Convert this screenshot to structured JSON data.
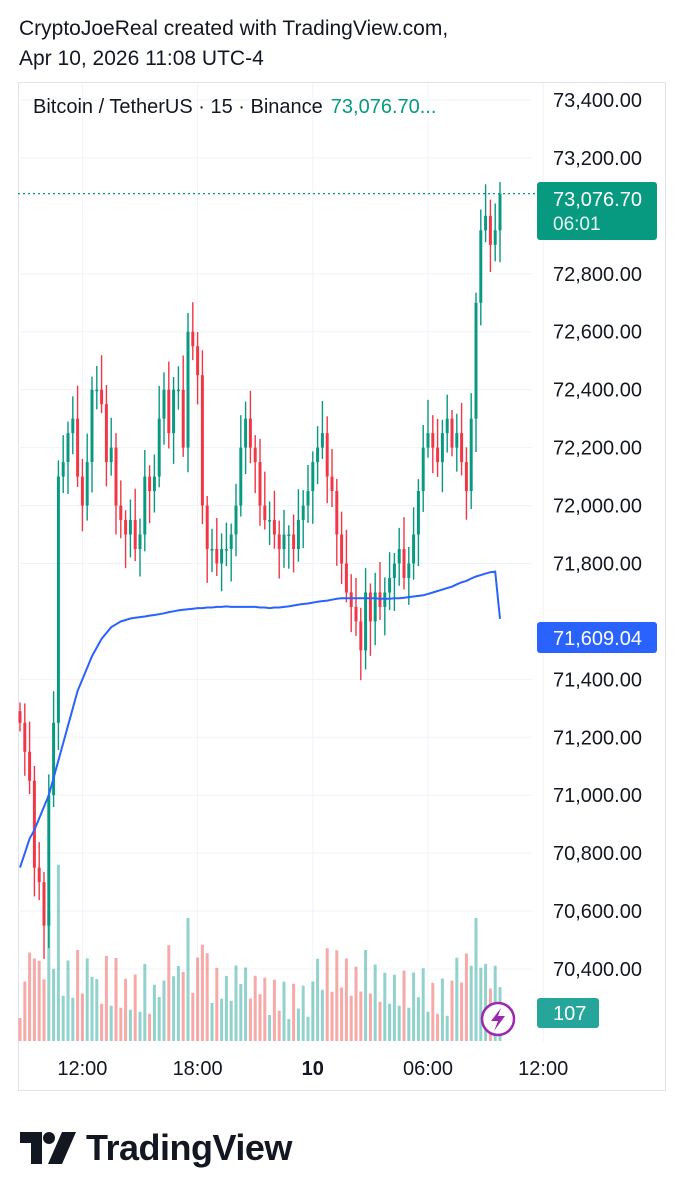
{
  "header": {
    "line1": "CryptoJoeReal created with TradingView.com,",
    "line2": "Apr 10, 2026 11:08 UTC-4"
  },
  "legend": {
    "symbol": "Bitcoin / TetherUS · 15 · Binance",
    "price": "73,076.70..."
  },
  "badges": {
    "last_price": "73,076.70",
    "countdown": "06:01",
    "ma_value": "71,609.04",
    "volume": "107"
  },
  "brand": {
    "name": "TradingView"
  },
  "colors": {
    "up": "#089981",
    "down": "#f23645",
    "ma": "#2962ff",
    "grid": "#f0f3fa"
  },
  "chart_data": {
    "type": "candlestick",
    "symbol": "BTCUSDT",
    "interval": "15",
    "exchange": "Binance",
    "ylim": [
      70300,
      73400
    ],
    "y_ticks": [
      73400,
      73200,
      72800,
      72600,
      72400,
      72200,
      72000,
      71800,
      71400,
      71200,
      71000,
      70800,
      70600,
      70400
    ],
    "y_tick_labels": [
      "73,400.00",
      "73,200.00",
      "72,800.00",
      "72,600.00",
      "72,400.00",
      "72,200.00",
      "72,000.00",
      "71,800.00",
      "71,400.00",
      "71,200.00",
      "71,000.00",
      "70,800.00",
      "70,600.00",
      "70,400.00"
    ],
    "x_tick_labels": [
      "12:00",
      "18:00",
      "10",
      "06:00",
      "12:00"
    ],
    "x_tick_index": [
      13,
      37,
      61,
      85,
      109
    ],
    "last_price": 73076.7,
    "ma_last": 71609.04,
    "closes": [
      71250,
      71150,
      71050,
      70750,
      70700,
      70550,
      71000,
      71250,
      72100,
      72150,
      72250,
      72300,
      72100,
      72000,
      72150,
      72400,
      72400,
      72350,
      72150,
      72200,
      72000,
      71950,
      71900,
      71950,
      71850,
      71900,
      72100,
      72050,
      72100,
      72300,
      72400,
      72250,
      72400,
      72400,
      72200,
      72600,
      72550,
      72450,
      72000,
      71850,
      71850,
      71800,
      71850,
      71850,
      71900,
      72000,
      72200,
      72300,
      72200,
      72150,
      72000,
      71950,
      71950,
      71900,
      71850,
      71900,
      71900,
      71850,
      71950,
      72000,
      72050,
      72150,
      72200,
      72250,
      72100,
      72050,
      71900,
      71800,
      71700,
      71650,
      71600,
      71500,
      71700,
      71600,
      71700,
      71650,
      71700,
      71750,
      71800,
      71850,
      71750,
      71800,
      71900,
      72050,
      72200,
      72250,
      72200,
      72150,
      72250,
      72300,
      72200,
      72250,
      72150,
      72050,
      72300,
      72700,
      72950,
      73000,
      72900,
      72950,
      73076.7
    ],
    "ma": [
      70750,
      70800,
      70850,
      70880,
      70920,
      70960,
      71000,
      71060,
      71120,
      71180,
      71240,
      71300,
      71360,
      71400,
      71440,
      71480,
      71510,
      71540,
      71560,
      71580,
      71590,
      71600,
      71605,
      71610,
      71613,
      71615,
      71617,
      71620,
      71622,
      71625,
      71628,
      71632,
      71635,
      71638,
      71640,
      71642,
      71644,
      71646,
      71646,
      71648,
      71648,
      71650,
      71650,
      71652,
      71650,
      71650,
      71650,
      71650,
      71650,
      71650,
      71648,
      71648,
      71646,
      71648,
      71648,
      71650,
      71652,
      71655,
      71658,
      71660,
      71662,
      71665,
      71668,
      71670,
      71672,
      71675,
      71678,
      71680,
      71680,
      71680,
      71680,
      71680,
      71680,
      71680,
      71680,
      71678,
      71678,
      71678,
      71680,
      71680,
      71682,
      71684,
      71686,
      71688,
      71690,
      71695,
      71700,
      71705,
      71710,
      71715,
      71720,
      71728,
      71735,
      71740,
      71748,
      71755,
      71760,
      71765,
      71770,
      71772,
      71609.04
    ],
    "volume_last": 107
  }
}
